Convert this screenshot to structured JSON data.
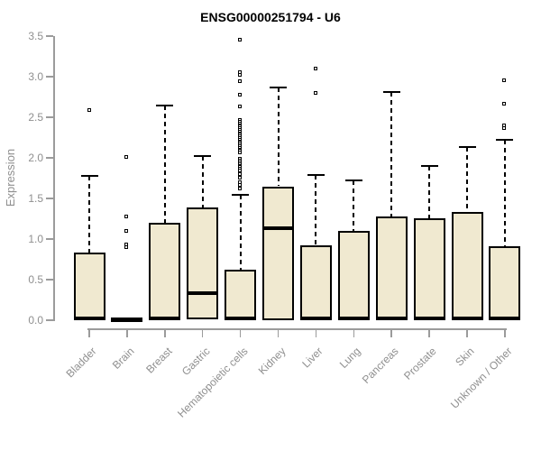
{
  "chart_data": {
    "type": "boxplot",
    "title": "ENSG00000251794 - U6",
    "xlabel": "",
    "ylabel": "Expression",
    "ylim": [
      0.0,
      3.5
    ],
    "ytick_labels": [
      "0.0",
      "0.5",
      "1.0",
      "1.5",
      "2.0",
      "2.5",
      "3.0",
      "3.5"
    ],
    "grid": false,
    "legend": false,
    "categories": [
      "Bladder",
      "Brain",
      "Breast",
      "Gastric",
      "Hematopoietic cells",
      "Kidney",
      "Liver",
      "Lung",
      "Pancreas",
      "Prostate",
      "Skin",
      "Unknown / Other"
    ],
    "boxes": [
      {
        "category": "Bladder",
        "whisker_low": 0.0,
        "q1": 0.0,
        "median": 0.02,
        "q3": 0.83,
        "whisker_high": 1.78,
        "outliers": [
          2.58
        ]
      },
      {
        "category": "Brain",
        "whisker_low": 0.0,
        "q1": 0.0,
        "median": 0.01,
        "q3": 0.02,
        "whisker_high": 0.02,
        "outliers": [
          0.89,
          0.93,
          1.09,
          1.27,
          2.01
        ]
      },
      {
        "category": "Breast",
        "whisker_low": 0.0,
        "q1": 0.0,
        "median": 0.02,
        "q3": 1.2,
        "whisker_high": 2.65,
        "outliers": []
      },
      {
        "category": "Gastric",
        "whisker_low": 0.0,
        "q1": 0.01,
        "median": 0.33,
        "q3": 1.39,
        "whisker_high": 2.02,
        "outliers": []
      },
      {
        "category": "Hematopoietic cells",
        "whisker_low": 0.0,
        "q1": 0.0,
        "median": 0.02,
        "q3": 0.62,
        "whisker_high": 1.55,
        "outliers": [
          3.45,
          3.05,
          3.02,
          2.94,
          2.77,
          2.63,
          2.46,
          2.44,
          2.42,
          2.4,
          2.38,
          2.36,
          2.34,
          2.32,
          2.3,
          2.28,
          2.26,
          2.24,
          2.22,
          2.2,
          2.18,
          2.16,
          2.14,
          2.12,
          2.1,
          2.08,
          2.06,
          1.98,
          1.96,
          1.94,
          1.92,
          1.9,
          1.88,
          1.86,
          1.84,
          1.79,
          1.75,
          1.7,
          1.66,
          1.62
        ]
      },
      {
        "category": "Kidney",
        "whisker_low": 0.0,
        "q1": 0.0,
        "median": 1.13,
        "q3": 1.65,
        "whisker_high": 2.87,
        "outliers": []
      },
      {
        "category": "Liver",
        "whisker_low": 0.0,
        "q1": 0.0,
        "median": 0.02,
        "q3": 0.92,
        "whisker_high": 1.79,
        "outliers": [
          2.8,
          3.1
        ]
      },
      {
        "category": "Lung",
        "whisker_low": 0.0,
        "q1": 0.0,
        "median": 0.02,
        "q3": 1.1,
        "whisker_high": 1.72,
        "outliers": []
      },
      {
        "category": "Pancreas",
        "whisker_low": 0.0,
        "q1": 0.0,
        "median": 0.02,
        "q3": 1.28,
        "whisker_high": 2.81,
        "outliers": []
      },
      {
        "category": "Prostate",
        "whisker_low": 0.0,
        "q1": 0.0,
        "median": 0.02,
        "q3": 1.26,
        "whisker_high": 1.9,
        "outliers": []
      },
      {
        "category": "Skin",
        "whisker_low": 0.0,
        "q1": 0.0,
        "median": 0.02,
        "q3": 1.33,
        "whisker_high": 2.13,
        "outliers": []
      },
      {
        "category": "Unknown / Other",
        "whisker_low": 0.0,
        "q1": 0.0,
        "median": 0.02,
        "q3": 0.91,
        "whisker_high": 2.22,
        "outliers": [
          2.36,
          2.4,
          2.66,
          2.95
        ]
      }
    ],
    "colors": {
      "box_fill": "#F0E9D0",
      "box_border": "#000000",
      "median": "#000000",
      "axis": "#9B9B9B",
      "tick_text": "#8F8F8F",
      "title_text": "#000000",
      "background": "#FFFFFF"
    }
  }
}
